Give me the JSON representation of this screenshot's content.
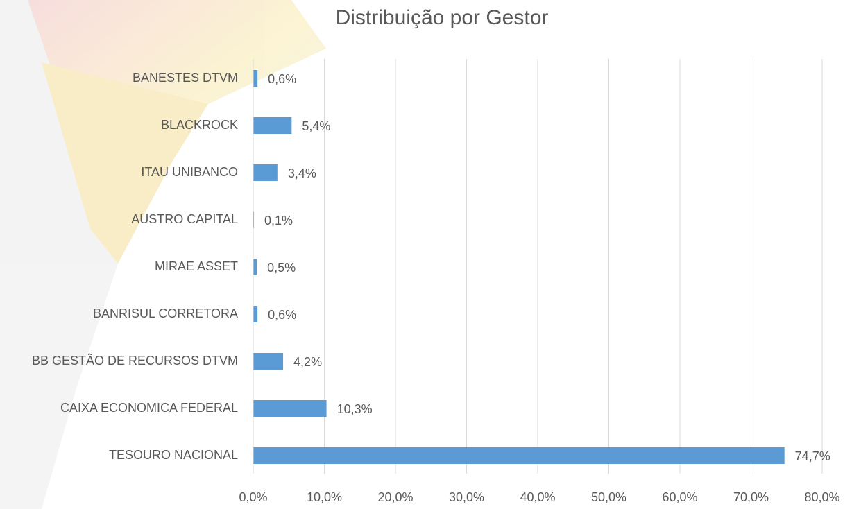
{
  "chart_data": {
    "type": "hbar",
    "title": "Distribuição por Gestor",
    "categories": [
      "BANESTES DTVM",
      "BLACKROCK",
      "ITAU UNIBANCO",
      "AUSTRO CAPITAL",
      "MIRAE ASSET",
      "BANRISUL CORRETORA",
      "BB GESTÃO DE RECURSOS DTVM",
      "CAIXA ECONOMICA FEDERAL",
      "TESOURO NACIONAL"
    ],
    "values": [
      0.6,
      5.4,
      3.4,
      0.1,
      0.5,
      0.6,
      4.2,
      10.3,
      74.7
    ],
    "value_labels": [
      "0,6%",
      "5,4%",
      "3,4%",
      "0,1%",
      "0,5%",
      "0,6%",
      "4,2%",
      "10,3%",
      "74,7%"
    ],
    "color": "#5b9bd5",
    "xlim": [
      0,
      80
    ],
    "xticks": [
      {
        "value": 0,
        "label": "0,0%"
      },
      {
        "value": 10,
        "label": "10,0%"
      },
      {
        "value": 20,
        "label": "20,0%"
      },
      {
        "value": 30,
        "label": "30,0%"
      },
      {
        "value": 40,
        "label": "40,0%"
      },
      {
        "value": 50,
        "label": "50,0%"
      },
      {
        "value": 60,
        "label": "60,0%"
      },
      {
        "value": 70,
        "label": "70,0%"
      },
      {
        "value": 80,
        "label": "80,0%"
      }
    ],
    "grid": true
  }
}
